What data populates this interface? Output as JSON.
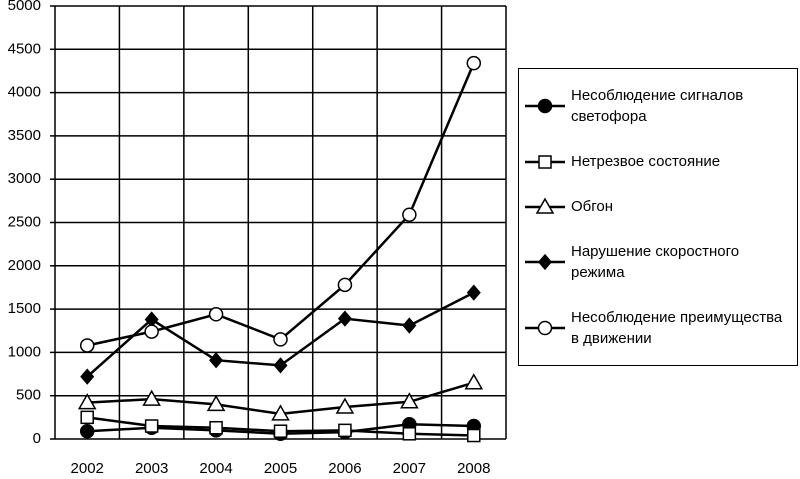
{
  "chart_data": {
    "type": "line",
    "categories": [
      "2002",
      "2003",
      "2004",
      "2005",
      "2006",
      "2007",
      "2008"
    ],
    "ylim": [
      0,
      5000
    ],
    "yticks": [
      0,
      500,
      1000,
      1500,
      2000,
      2500,
      3000,
      3500,
      4000,
      4500,
      5000
    ],
    "grid": true,
    "legend": "right",
    "series": [
      {
        "name": "Несоблюдение сигналов светофора",
        "color": "#000000",
        "marker": "circle-filled",
        "values": [
          90,
          130,
          100,
          60,
          80,
          170,
          150
        ]
      },
      {
        "name": "Нетрезвое состояние",
        "color": "#000000",
        "marker": "square-open",
        "values": [
          250,
          150,
          130,
          90,
          100,
          60,
          40
        ]
      },
      {
        "name": "Обгон",
        "color": "#000000",
        "marker": "triangle-open",
        "values": [
          420,
          460,
          400,
          290,
          370,
          430,
          650
        ]
      },
      {
        "name": "Нарушение скоростного режима",
        "color": "#000000",
        "marker": "diamond-filled",
        "values": [
          720,
          1380,
          910,
          850,
          1390,
          1310,
          1690
        ]
      },
      {
        "name": "Несоблюдение преимущества в движении",
        "color": "#000000",
        "marker": "circle-open",
        "values": [
          1080,
          1240,
          1440,
          1150,
          1780,
          2590,
          4340
        ]
      }
    ]
  }
}
